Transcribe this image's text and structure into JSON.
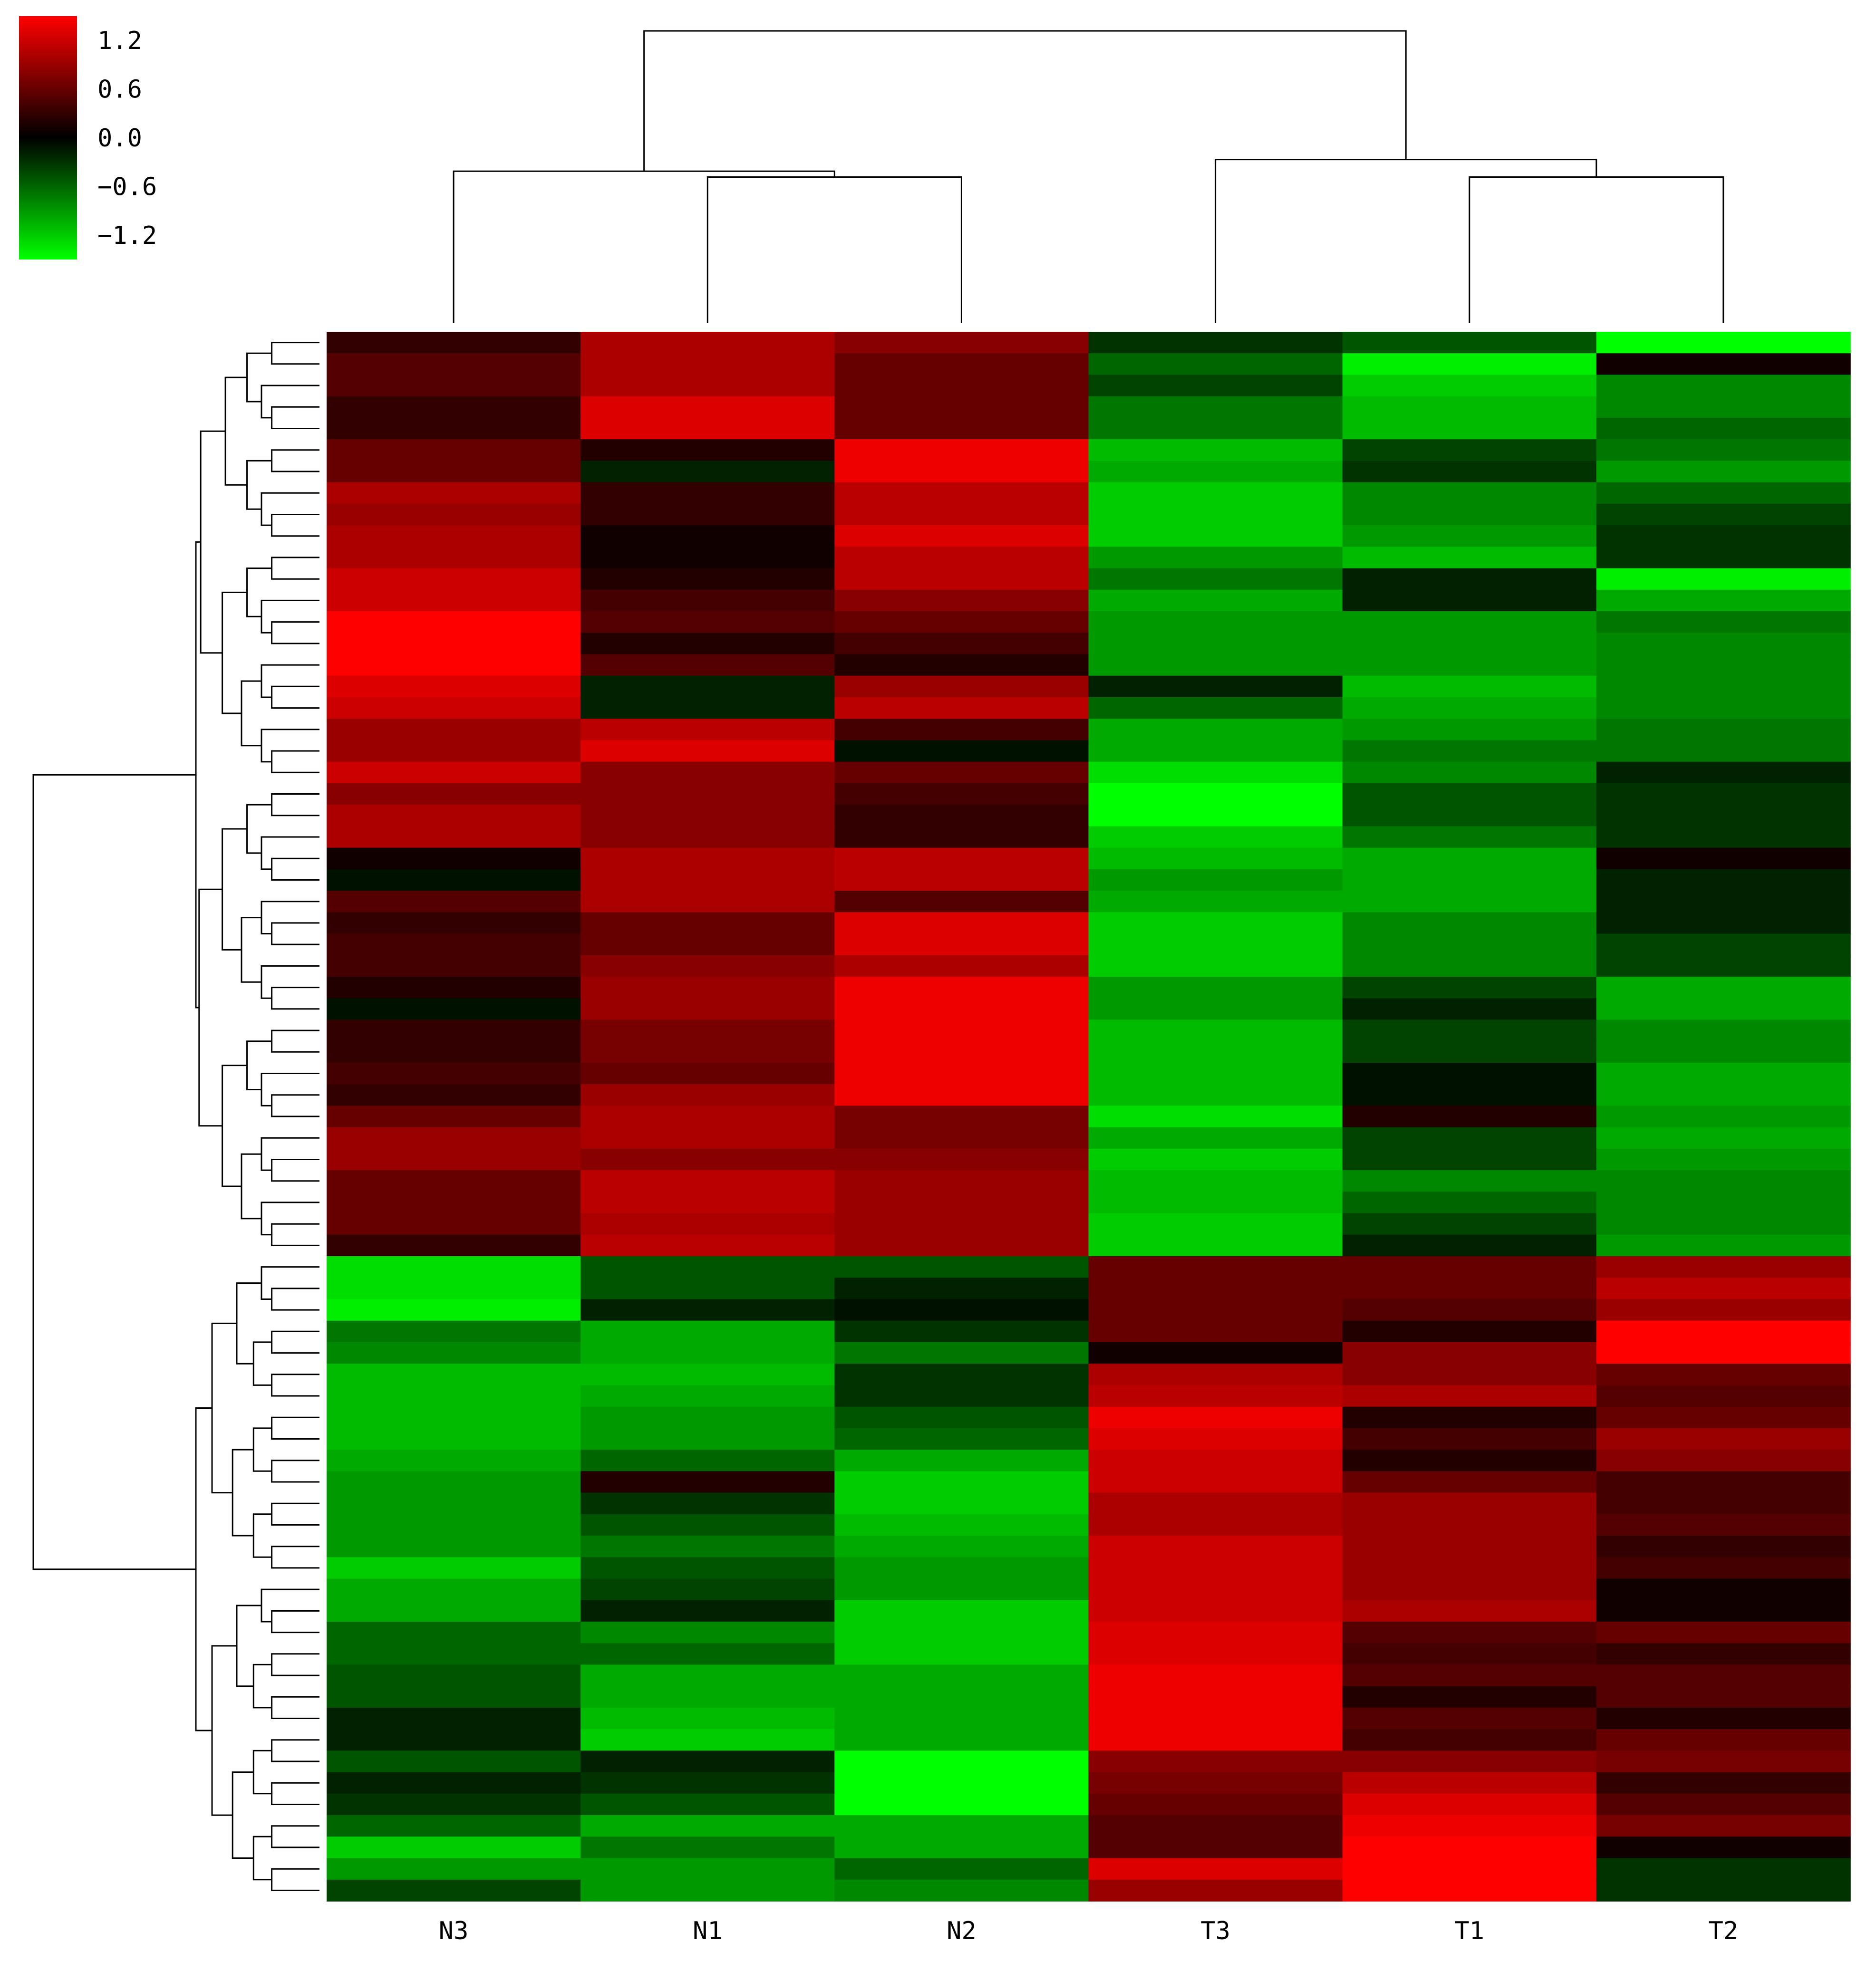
{
  "chart_data": {
    "type": "heatmap",
    "title": "",
    "xlabel": "",
    "ylabel": "",
    "columns": [
      "N3",
      "N1",
      "N2",
      "T3",
      "T1",
      "T2"
    ],
    "colorbar": {
      "vmin": -1.5,
      "vmax": 1.5,
      "ticks": [
        1.2,
        0.6,
        0.0,
        -0.6,
        -1.2
      ],
      "tick_labels": [
        "1.2",
        "0.6",
        "0.0",
        "−0.6",
        "−1.2"
      ],
      "low_color": "#00ff00",
      "mid_color": "#000000",
      "high_color": "#ff0000"
    },
    "rows": [
      [
        0.3,
        1.0,
        0.8,
        -0.3,
        -0.5,
        -1.5
      ],
      [
        0.5,
        1.0,
        0.6,
        -0.6,
        -1.4,
        0.1
      ],
      [
        0.5,
        1.0,
        0.6,
        -0.4,
        -1.2,
        -0.8
      ],
      [
        0.3,
        1.3,
        0.6,
        -0.7,
        -1.1,
        -0.8
      ],
      [
        0.3,
        1.3,
        0.6,
        -0.7,
        -1.1,
        -0.6
      ],
      [
        0.6,
        0.2,
        1.4,
        -1.1,
        -0.4,
        -0.7
      ],
      [
        0.6,
        -0.2,
        1.4,
        -1.0,
        -0.3,
        -0.9
      ],
      [
        1.0,
        0.3,
        1.1,
        -1.2,
        -0.8,
        -0.6
      ],
      [
        0.9,
        0.3,
        1.1,
        -1.2,
        -0.8,
        -0.4
      ],
      [
        1.0,
        0.1,
        1.3,
        -1.2,
        -0.9,
        -0.3
      ],
      [
        1.0,
        0.1,
        1.1,
        -0.9,
        -1.1,
        -0.3
      ],
      [
        1.2,
        0.2,
        1.1,
        -0.7,
        -0.2,
        -1.4
      ],
      [
        1.2,
        0.4,
        0.8,
        -1.0,
        -0.2,
        -1.0
      ],
      [
        1.5,
        0.5,
        0.6,
        -0.9,
        -0.9,
        -0.7
      ],
      [
        1.5,
        0.2,
        0.4,
        -0.9,
        -0.9,
        -0.8
      ],
      [
        1.5,
        0.5,
        0.2,
        -0.9,
        -0.9,
        -0.8
      ],
      [
        1.3,
        -0.2,
        0.9,
        -0.2,
        -1.1,
        -0.8
      ],
      [
        1.2,
        -0.2,
        1.1,
        -0.6,
        -1.0,
        -0.8
      ],
      [
        0.9,
        1.1,
        0.4,
        -1.0,
        -0.9,
        -0.7
      ],
      [
        0.9,
        1.3,
        -0.1,
        -1.0,
        -0.7,
        -0.7
      ],
      [
        1.2,
        0.8,
        0.6,
        -1.3,
        -0.8,
        -0.2
      ],
      [
        0.8,
        0.8,
        0.4,
        -1.5,
        -0.5,
        -0.3
      ],
      [
        1.0,
        0.8,
        0.3,
        -1.5,
        -0.5,
        -0.3
      ],
      [
        1.0,
        0.8,
        0.3,
        -1.2,
        -0.7,
        -0.3
      ],
      [
        0.1,
        1.0,
        1.1,
        -1.1,
        -1.0,
        0.1
      ],
      [
        -0.1,
        1.0,
        1.1,
        -0.9,
        -1.0,
        -0.2
      ],
      [
        0.5,
        1.0,
        0.5,
        -1.0,
        -1.0,
        -0.2
      ],
      [
        0.3,
        0.6,
        1.3,
        -1.2,
        -0.8,
        -0.2
      ],
      [
        0.4,
        0.6,
        1.3,
        -1.2,
        -0.8,
        -0.4
      ],
      [
        0.4,
        0.8,
        1.0,
        -1.2,
        -0.8,
        -0.4
      ],
      [
        0.2,
        0.9,
        1.4,
        -0.9,
        -0.4,
        -1.0
      ],
      [
        -0.1,
        0.9,
        1.4,
        -0.9,
        -0.2,
        -1.0
      ],
      [
        0.3,
        0.7,
        1.4,
        -1.1,
        -0.4,
        -0.8
      ],
      [
        0.3,
        0.7,
        1.4,
        -1.1,
        -0.4,
        -0.8
      ],
      [
        0.4,
        0.6,
        1.4,
        -1.1,
        -0.1,
        -1.0
      ],
      [
        0.3,
        0.9,
        1.4,
        -1.1,
        -0.1,
        -1.0
      ],
      [
        0.6,
        1.0,
        0.7,
        -1.3,
        0.2,
        -0.9
      ],
      [
        0.9,
        1.0,
        0.7,
        -1.0,
        -0.4,
        -1.0
      ],
      [
        0.9,
        0.8,
        0.8,
        -1.2,
        -0.4,
        -0.9
      ],
      [
        0.6,
        1.1,
        0.9,
        -1.1,
        -0.8,
        -0.8
      ],
      [
        0.6,
        1.1,
        0.9,
        -1.1,
        -0.6,
        -0.8
      ],
      [
        0.6,
        1.0,
        0.9,
        -1.2,
        -0.4,
        -0.8
      ],
      [
        0.3,
        1.1,
        0.9,
        -1.2,
        -0.2,
        -0.9
      ],
      [
        -1.3,
        -0.5,
        -0.5,
        0.6,
        0.6,
        0.9
      ],
      [
        -1.3,
        -0.5,
        -0.2,
        0.6,
        0.6,
        1.1
      ],
      [
        -1.4,
        -0.2,
        -0.1,
        0.6,
        0.5,
        0.9
      ],
      [
        -0.7,
        -1.0,
        -0.3,
        0.6,
        0.2,
        1.5
      ],
      [
        -0.8,
        -1.0,
        -0.7,
        0.1,
        0.8,
        1.5
      ],
      [
        -1.1,
        -1.1,
        -0.3,
        1.0,
        0.8,
        0.6
      ],
      [
        -1.1,
        -1.0,
        -0.3,
        1.1,
        1.0,
        0.5
      ],
      [
        -1.1,
        -0.9,
        -0.5,
        1.4,
        0.2,
        0.6
      ],
      [
        -1.1,
        -0.9,
        -0.6,
        1.3,
        0.4,
        0.9
      ],
      [
        -1.0,
        -0.6,
        -1.0,
        1.2,
        0.2,
        0.8
      ],
      [
        -0.9,
        0.2,
        -1.2,
        1.2,
        0.6,
        0.4
      ],
      [
        -0.9,
        -0.3,
        -1.2,
        1.0,
        0.9,
        0.4
      ],
      [
        -0.9,
        -0.5,
        -1.1,
        1.0,
        0.9,
        0.5
      ],
      [
        -0.9,
        -0.7,
        -1.0,
        1.2,
        0.9,
        0.3
      ],
      [
        -1.2,
        -0.5,
        -0.9,
        1.2,
        0.9,
        0.4
      ],
      [
        -1.0,
        -0.4,
        -0.9,
        1.2,
        0.9,
        0.1
      ],
      [
        -1.0,
        -0.2,
        -1.2,
        1.2,
        1.0,
        0.1
      ],
      [
        -0.6,
        -0.8,
        -1.2,
        1.3,
        0.5,
        0.6
      ],
      [
        -0.6,
        -0.6,
        -1.2,
        1.3,
        0.4,
        0.3
      ],
      [
        -0.5,
        -1.0,
        -1.0,
        1.4,
        0.5,
        0.5
      ],
      [
        -0.5,
        -1.0,
        -1.0,
        1.4,
        0.2,
        0.5
      ],
      [
        -0.2,
        -1.1,
        -1.0,
        1.4,
        0.5,
        0.2
      ],
      [
        -0.2,
        -1.2,
        -1.0,
        1.4,
        0.4,
        0.6
      ],
      [
        -0.5,
        -0.2,
        -1.5,
        0.8,
        0.8,
        0.7
      ],
      [
        -0.2,
        -0.3,
        -1.5,
        0.7,
        1.1,
        0.3
      ],
      [
        -0.3,
        -0.5,
        -1.5,
        0.6,
        1.3,
        0.5
      ],
      [
        -0.6,
        -1.0,
        -1.0,
        0.5,
        1.4,
        0.7
      ],
      [
        -1.2,
        -0.7,
        -1.0,
        0.5,
        1.5,
        0.1
      ],
      [
        -0.9,
        -0.9,
        -0.6,
        1.3,
        1.5,
        -0.3
      ],
      [
        -0.4,
        -0.9,
        -0.8,
        0.9,
        1.5,
        -0.3
      ]
    ],
    "col_dendrogram": {
      "merges": [
        [
          1,
          2,
          0.5
        ],
        [
          0,
          6,
          0.52
        ],
        [
          4,
          5,
          0.5
        ],
        [
          3,
          8,
          0.56
        ],
        [
          7,
          9,
          1.0
        ]
      ]
    },
    "row_dendrogram": {
      "groups": [
        43,
        30
      ]
    }
  }
}
